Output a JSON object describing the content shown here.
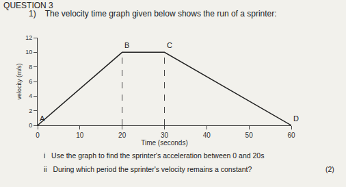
{
  "chart_data": {
    "type": "line",
    "title": "QUESTION 3",
    "subtitle": "1)    The velocity time graph given below shows the run of a sprinter:",
    "x_label": "Time (seconds)",
    "y_label": "velocity (m/s)",
    "x": [
      0,
      20,
      30,
      60
    ],
    "values": [
      0,
      10,
      10,
      0
    ],
    "color": "#222222",
    "xlim": [
      0,
      60
    ],
    "xticks": [
      0,
      10,
      20,
      30,
      40,
      50,
      60
    ],
    "ylim": [
      0,
      12
    ],
    "yticks": [
      0,
      2,
      4,
      6,
      8,
      10,
      12
    ],
    "grid": false,
    "reference_lines": [
      {
        "x": 20,
        "y": 10
      },
      {
        "x": 30,
        "y": 10
      }
    ],
    "annotations": [
      {
        "text": "A",
        "x": 0,
        "y": 0
      },
      {
        "text": "B",
        "x": 20,
        "y": 10
      },
      {
        "text": "C",
        "x": 30,
        "y": 10
      },
      {
        "text": "D",
        "x": 60,
        "y": 0
      }
    ],
    "questions": [
      {
        "text": "i   Use the graph to find the sprinter's acceleration between 0 and 20s",
        "marks": null
      },
      {
        "text": "ii   During which period the sprinter's velocity remains a constant?",
        "marks": "(2)"
      }
    ]
  }
}
